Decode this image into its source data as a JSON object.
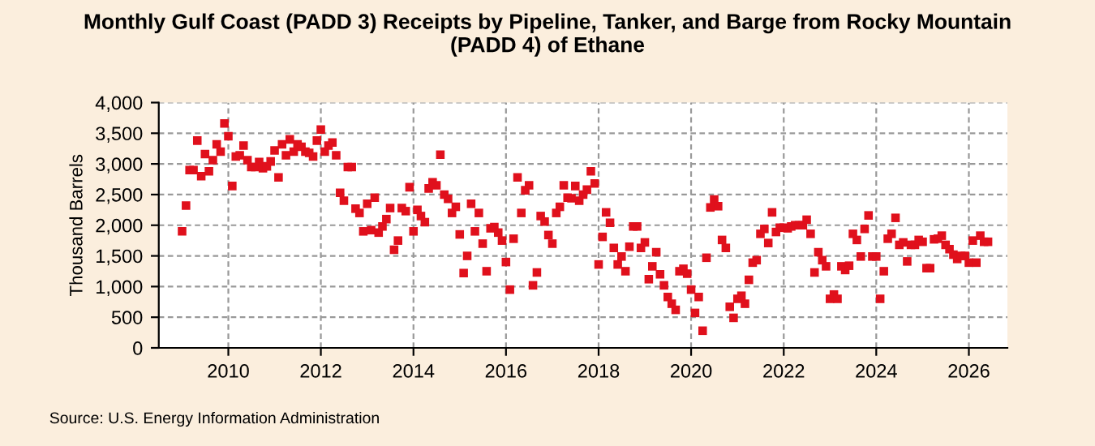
{
  "chart_data": {
    "type": "scatter",
    "title": "Monthly Gulf Coast (PADD 3) Receipts by Pipeline, Tanker, and Barge from Rocky Mountain\n(PADD 4) of Ethane",
    "ylabel": "Thousand Barrels",
    "annotations": [
      "Source: U.S. Energy Information Administration"
    ],
    "x": [
      "2009-01",
      "2009-02",
      "2009-03",
      "2009-04",
      "2009-05",
      "2009-06",
      "2009-07",
      "2009-08",
      "2009-09",
      "2009-10",
      "2009-11",
      "2009-12",
      "2010-01",
      "2010-02",
      "2010-03",
      "2010-04",
      "2010-05",
      "2010-06",
      "2010-07",
      "2010-08",
      "2010-09",
      "2010-10",
      "2010-11",
      "2010-12",
      "2011-01",
      "2011-02",
      "2011-03",
      "2011-04",
      "2011-05",
      "2011-06",
      "2011-07",
      "2011-08",
      "2011-09",
      "2011-10",
      "2011-11",
      "2011-12",
      "2012-01",
      "2012-02",
      "2012-03",
      "2012-04",
      "2012-05",
      "2012-06",
      "2012-07",
      "2012-08",
      "2012-09",
      "2012-10",
      "2012-11",
      "2012-12",
      "2013-01",
      "2013-02",
      "2013-03",
      "2013-04",
      "2013-05",
      "2013-06",
      "2013-07",
      "2013-08",
      "2013-09",
      "2013-10",
      "2013-11",
      "2013-12",
      "2014-01",
      "2014-02",
      "2014-03",
      "2014-04",
      "2014-05",
      "2014-06",
      "2014-07",
      "2014-08",
      "2014-09",
      "2014-10",
      "2014-11",
      "2014-12",
      "2015-01",
      "2015-02",
      "2015-03",
      "2015-04",
      "2015-05",
      "2015-06",
      "2015-07",
      "2015-08",
      "2015-09",
      "2015-10",
      "2015-11",
      "2015-12",
      "2016-01",
      "2016-02",
      "2016-03",
      "2016-04",
      "2016-05",
      "2016-06",
      "2016-07",
      "2016-08",
      "2016-09",
      "2016-10",
      "2016-11",
      "2016-12",
      "2017-01",
      "2017-02",
      "2017-03",
      "2017-04",
      "2017-05",
      "2017-06",
      "2017-07",
      "2017-08",
      "2017-09",
      "2017-10",
      "2017-11",
      "2017-12",
      "2018-01",
      "2018-02",
      "2018-03",
      "2018-04",
      "2018-05",
      "2018-06",
      "2018-07",
      "2018-08",
      "2018-09",
      "2018-10",
      "2018-11",
      "2018-12",
      "2019-01",
      "2019-02",
      "2019-03",
      "2019-04",
      "2019-05",
      "2019-06",
      "2019-07",
      "2019-08",
      "2019-09",
      "2019-10",
      "2019-11",
      "2019-12",
      "2020-01",
      "2020-02",
      "2020-03",
      "2020-04",
      "2020-05",
      "2020-06",
      "2020-07",
      "2020-08",
      "2020-09",
      "2020-10",
      "2020-11",
      "2020-12",
      "2021-01",
      "2021-02",
      "2021-03",
      "2021-04",
      "2021-05",
      "2021-06",
      "2021-07",
      "2021-08",
      "2021-09",
      "2021-10",
      "2021-11",
      "2021-12",
      "2022-01",
      "2022-02",
      "2022-03",
      "2022-04",
      "2022-05",
      "2022-06",
      "2022-07",
      "2022-08",
      "2022-09",
      "2022-10",
      "2022-11",
      "2022-12",
      "2023-01",
      "2023-02",
      "2023-03",
      "2023-04",
      "2023-05",
      "2023-06",
      "2023-07",
      "2023-08",
      "2023-09",
      "2023-10",
      "2023-11",
      "2023-12",
      "2024-01",
      "2024-02",
      "2024-03",
      "2024-04",
      "2024-05",
      "2024-06",
      "2024-07",
      "2024-08",
      "2024-09",
      "2024-10",
      "2024-11",
      "2024-12",
      "2025-01",
      "2025-02",
      "2025-03",
      "2025-04",
      "2025-05",
      "2025-06",
      "2025-07",
      "2025-08",
      "2025-09",
      "2025-10",
      "2025-11",
      "2025-12",
      "2026-01",
      "2026-02",
      "2026-03",
      "2026-04",
      "2026-05",
      "2026-06"
    ],
    "series": [
      {
        "color": "#e0101c",
        "values": [
          1900,
          2320,
          2900,
          2900,
          3380,
          2800,
          3160,
          2880,
          3060,
          3320,
          3200,
          3660,
          3450,
          2640,
          3120,
          3140,
          3300,
          3060,
          2950,
          2950,
          3030,
          2930,
          2960,
          3040,
          3220,
          2780,
          3320,
          3140,
          3400,
          3200,
          3320,
          3280,
          3200,
          3180,
          3120,
          3380,
          3560,
          3200,
          3300,
          3350,
          3140,
          2530,
          2400,
          2950,
          2950,
          2270,
          2200,
          1900,
          2350,
          1920,
          2450,
          1880,
          1980,
          2100,
          2280,
          1600,
          1750,
          2280,
          2230,
          2620,
          1900,
          2250,
          2150,
          2050,
          2600,
          2700,
          2650,
          3150,
          2500,
          2430,
          2200,
          2300,
          1850,
          1220,
          1500,
          2350,
          1900,
          2200,
          1700,
          1250,
          1950,
          1970,
          1880,
          1750,
          1400,
          950,
          1780,
          2780,
          2200,
          2570,
          2650,
          1020,
          1230,
          2150,
          2060,
          1840,
          1700,
          2200,
          2300,
          2650,
          2450,
          2440,
          2640,
          2400,
          2500,
          2580,
          2880,
          2680,
          1360,
          1810,
          2210,
          2040,
          1630,
          1360,
          1490,
          1250,
          1650,
          1980,
          1980,
          1630,
          1720,
          1120,
          1330,
          1560,
          1200,
          1020,
          830,
          720,
          620,
          1250,
          1290,
          1210,
          950,
          570,
          830,
          280,
          1470,
          2290,
          2420,
          2310,
          1760,
          1630,
          670,
          490,
          800,
          850,
          720,
          1110,
          1390,
          1430,
          1860,
          1940,
          1710,
          2210,
          1890,
          1960,
          1960,
          1950,
          1980,
          2000,
          2000,
          2000,
          2090,
          1860,
          1230,
          1560,
          1430,
          1330,
          800,
          870,
          800,
          1330,
          1270,
          1340,
          1860,
          1760,
          1490,
          1940,
          2160,
          1490,
          1490,
          800,
          1250,
          1780,
          1860,
          2120,
          1680,
          1720,
          1410,
          1680,
          1680,
          1760,
          1730,
          1300,
          1300,
          1770,
          1780,
          1830,
          1680,
          1610,
          1520,
          1450,
          1500,
          1500,
          1390,
          1750,
          1390,
          1830,
          1730,
          1730
        ]
      }
    ],
    "marker": "square",
    "xlim": [
      "2008-07",
      "2026-11"
    ],
    "xticks": [
      "2010",
      "2012",
      "2014",
      "2016",
      "2018",
      "2020",
      "2022",
      "2024",
      "2026"
    ],
    "ylim": [
      0,
      4000
    ],
    "yticks": [
      {
        "value": 0,
        "label": "0"
      },
      {
        "value": 500,
        "label": "500"
      },
      {
        "value": 1000,
        "label": "1,000"
      },
      {
        "value": 1500,
        "label": "1,500"
      },
      {
        "value": 2000,
        "label": "2,000"
      },
      {
        "value": 2500,
        "label": "2,500"
      },
      {
        "value": 3000,
        "label": "3,000"
      },
      {
        "value": 3500,
        "label": "3,500"
      },
      {
        "value": 4000,
        "label": "4,000"
      }
    ],
    "grid": true
  }
}
